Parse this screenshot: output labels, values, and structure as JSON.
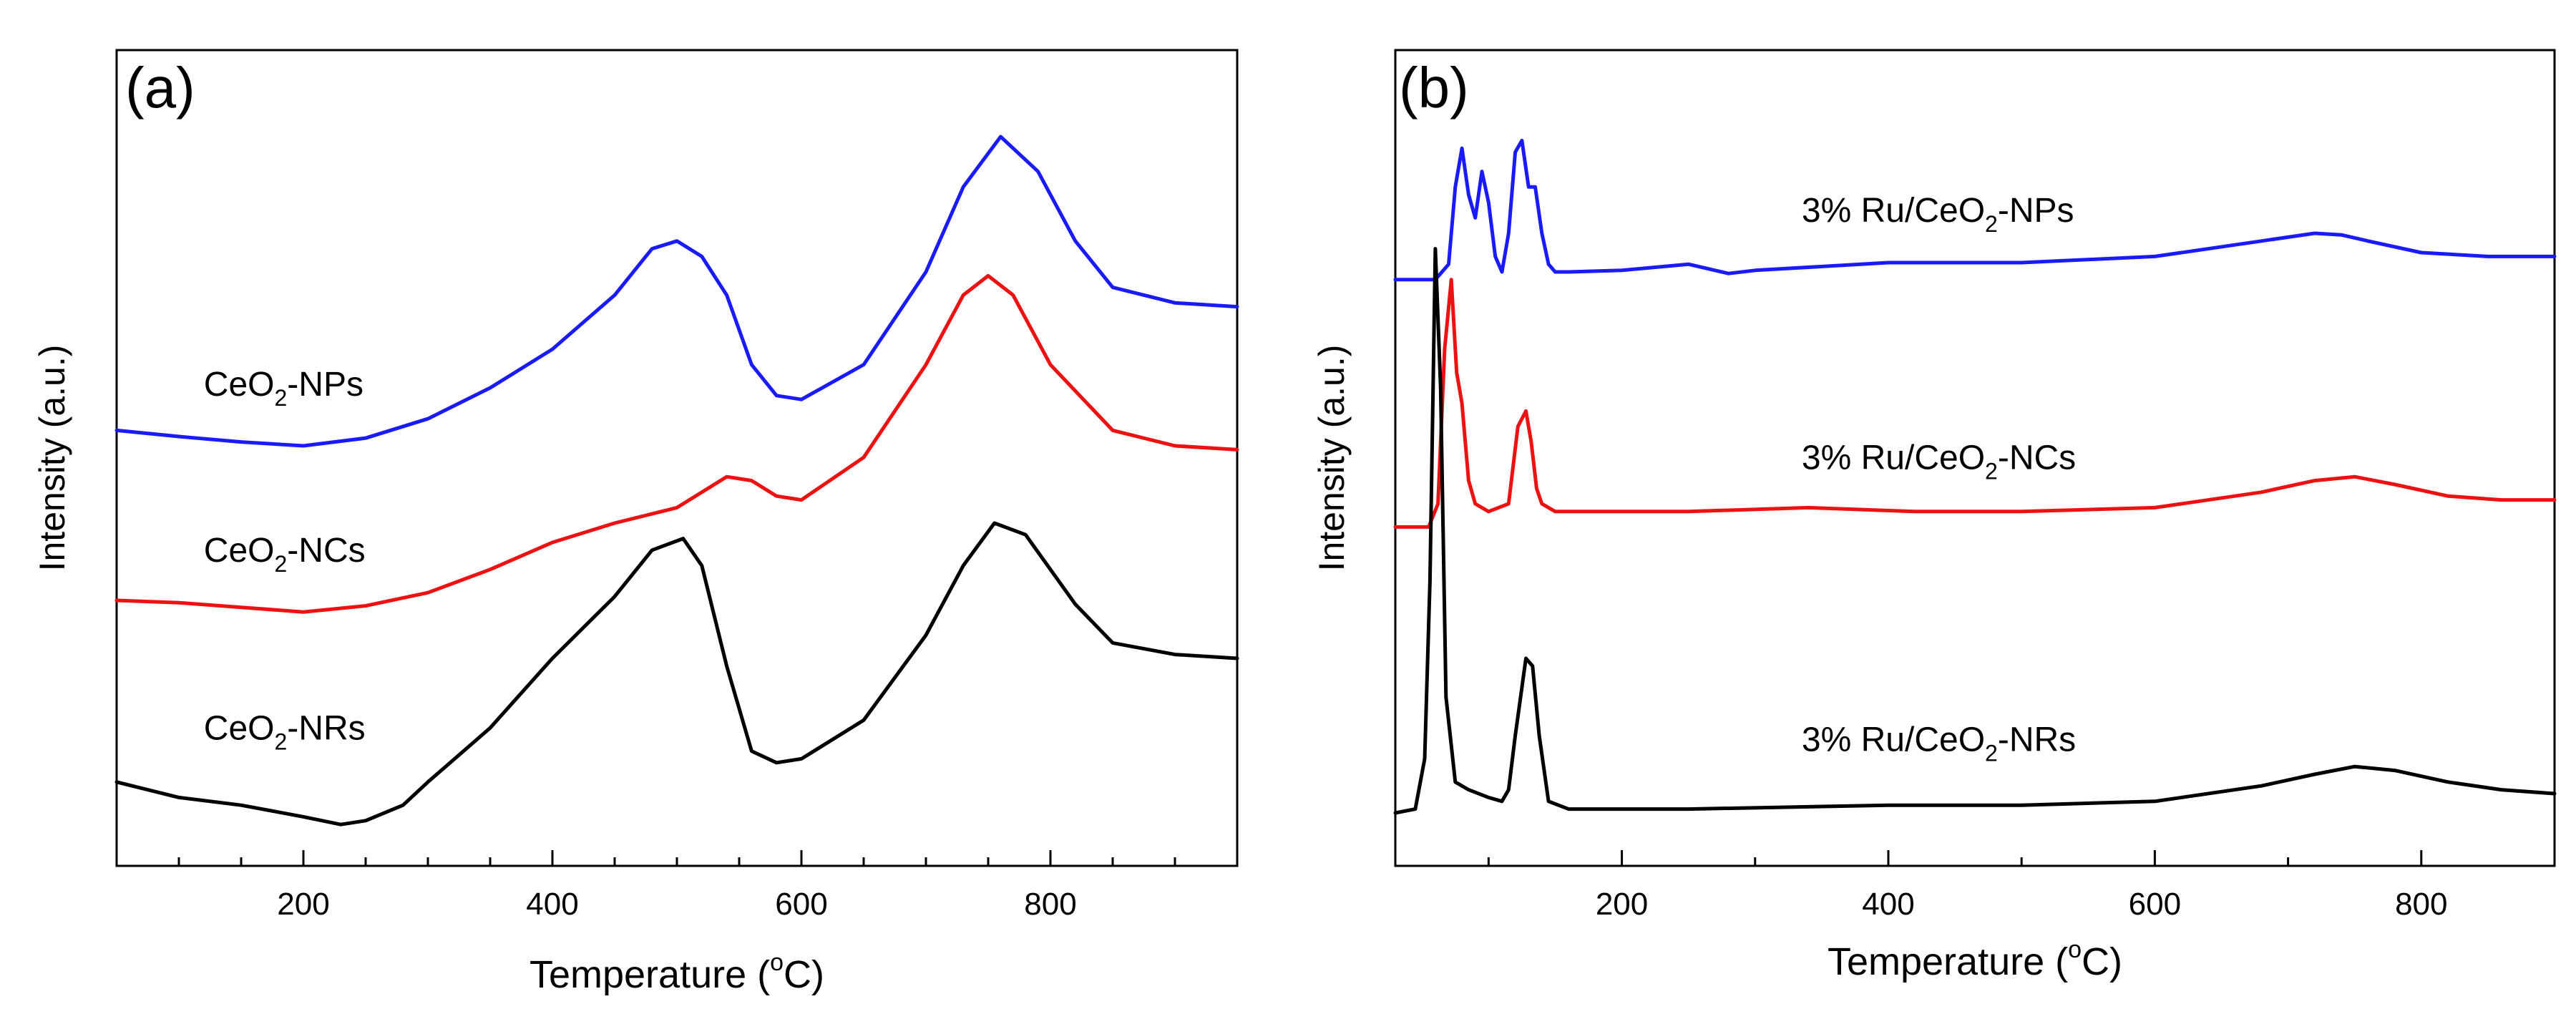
{
  "chart_data": [
    {
      "type": "line",
      "panel_label": "(a)",
      "xlabel": "Temperature",
      "xunit_deg": "o",
      "xunit_C": "C",
      "ylabel": "Intensity (a.u.)",
      "xlim": [
        50,
        950
      ],
      "ylim": [
        0,
        1
      ],
      "yticks_shown": false,
      "xticks": [
        200,
        400,
        600,
        800
      ],
      "series": [
        {
          "name": "CeO2-NPs",
          "label_main": "CeO",
          "label_sub": "2",
          "label_tail": "-NPs",
          "label_at": [
            120,
            0.59
          ],
          "color": "#1a1aff",
          "x": [
            50,
            100,
            150,
            200,
            250,
            300,
            350,
            400,
            450,
            480,
            500,
            520,
            540,
            560,
            580,
            600,
            650,
            700,
            730,
            760,
            790,
            820,
            850,
            900,
            950
          ],
          "y": [
            0.545,
            0.537,
            0.53,
            0.525,
            0.535,
            0.56,
            0.6,
            0.65,
            0.72,
            0.78,
            0.79,
            0.77,
            0.72,
            0.63,
            0.59,
            0.585,
            0.63,
            0.75,
            0.86,
            0.925,
            0.88,
            0.79,
            0.73,
            0.71,
            0.705
          ]
        },
        {
          "name": "CeO2-NCs",
          "label_main": "CeO",
          "label_sub": "2",
          "label_tail": "-NCs",
          "label_at": [
            120,
            0.375
          ],
          "color": "#ee1111",
          "x": [
            50,
            100,
            150,
            200,
            250,
            300,
            350,
            400,
            450,
            500,
            540,
            560,
            580,
            600,
            650,
            700,
            730,
            750,
            770,
            800,
            850,
            900,
            950
          ],
          "y": [
            0.325,
            0.322,
            0.316,
            0.31,
            0.318,
            0.335,
            0.365,
            0.4,
            0.425,
            0.445,
            0.485,
            0.48,
            0.46,
            0.455,
            0.51,
            0.63,
            0.72,
            0.745,
            0.72,
            0.63,
            0.545,
            0.525,
            0.52
          ]
        },
        {
          "name": "CeO2-NRs",
          "label_main": "CeO",
          "label_sub": "2",
          "label_tail": "-NRs",
          "label_at": [
            120,
            0.145
          ],
          "color": "#000000",
          "x": [
            50,
            100,
            150,
            200,
            230,
            250,
            280,
            300,
            350,
            400,
            450,
            480,
            505,
            520,
            540,
            560,
            580,
            600,
            650,
            700,
            730,
            755,
            780,
            820,
            850,
            900,
            950
          ],
          "y": [
            0.09,
            0.07,
            0.06,
            0.045,
            0.035,
            0.04,
            0.06,
            0.09,
            0.16,
            0.25,
            0.33,
            0.39,
            0.405,
            0.37,
            0.24,
            0.13,
            0.115,
            0.12,
            0.17,
            0.28,
            0.37,
            0.425,
            0.41,
            0.32,
            0.27,
            0.255,
            0.25
          ]
        }
      ]
    },
    {
      "type": "line",
      "panel_label": "(b)",
      "xlabel": "Temperature",
      "xunit_deg": "o",
      "xunit_C": "C",
      "ylabel": "Intensity (a.u.)",
      "xlim": [
        30,
        900
      ],
      "ylim": [
        0,
        1
      ],
      "yticks_shown": false,
      "xticks": [
        200,
        400,
        600,
        800
      ],
      "series": [
        {
          "name": "3% Ru/CeO2-NPs",
          "label_main": "3% Ru/CeO",
          "label_sub": "2",
          "label_tail": "-NPs",
          "label_at": [
            335,
            0.815
          ],
          "color": "#1a1aff",
          "x": [
            30,
            60,
            70,
            75,
            80,
            85,
            90,
            95,
            100,
            105,
            110,
            115,
            120,
            125,
            130,
            135,
            140,
            145,
            150,
            160,
            200,
            250,
            280,
            300,
            400,
            500,
            600,
            680,
            720,
            740,
            760,
            800,
            850,
            900
          ],
          "y": [
            0.74,
            0.74,
            0.76,
            0.86,
            0.91,
            0.85,
            0.82,
            0.88,
            0.84,
            0.77,
            0.75,
            0.8,
            0.905,
            0.92,
            0.86,
            0.86,
            0.8,
            0.76,
            0.75,
            0.75,
            0.752,
            0.76,
            0.748,
            0.752,
            0.762,
            0.762,
            0.77,
            0.79,
            0.8,
            0.798,
            0.79,
            0.775,
            0.77,
            0.77
          ]
        },
        {
          "name": "3% Ru/CeO2-NCs",
          "label_main": "3% Ru/CeO",
          "label_sub": "2",
          "label_tail": "-NCs",
          "label_at": [
            335,
            0.495
          ],
          "color": "#ee1111",
          "x": [
            30,
            55,
            62,
            67,
            72,
            76,
            80,
            85,
            90,
            100,
            115,
            122,
            128,
            132,
            136,
            140,
            150,
            170,
            250,
            340,
            420,
            500,
            600,
            680,
            720,
            750,
            780,
            820,
            860,
            900
          ],
          "y": [
            0.42,
            0.42,
            0.45,
            0.65,
            0.74,
            0.62,
            0.58,
            0.48,
            0.45,
            0.44,
            0.45,
            0.55,
            0.57,
            0.53,
            0.47,
            0.45,
            0.44,
            0.44,
            0.44,
            0.445,
            0.44,
            0.44,
            0.445,
            0.465,
            0.48,
            0.485,
            0.475,
            0.46,
            0.455,
            0.455
          ]
        },
        {
          "name": "3% Ru/CeO2-NRs",
          "label_main": "3% Ru/CeO",
          "label_sub": "2",
          "label_tail": "-NRs",
          "label_at": [
            335,
            0.13
          ],
          "color": "#000000",
          "x": [
            30,
            45,
            52,
            56,
            60,
            64,
            68,
            75,
            85,
            100,
            110,
            115,
            120,
            128,
            133,
            138,
            145,
            160,
            250,
            400,
            500,
            600,
            680,
            720,
            750,
            780,
            820,
            860,
            900
          ],
          "y": [
            0.05,
            0.055,
            0.12,
            0.35,
            0.78,
            0.6,
            0.2,
            0.09,
            0.08,
            0.07,
            0.065,
            0.08,
            0.15,
            0.25,
            0.24,
            0.15,
            0.065,
            0.055,
            0.055,
            0.06,
            0.06,
            0.065,
            0.085,
            0.1,
            0.11,
            0.105,
            0.09,
            0.08,
            0.075
          ]
        }
      ]
    }
  ]
}
